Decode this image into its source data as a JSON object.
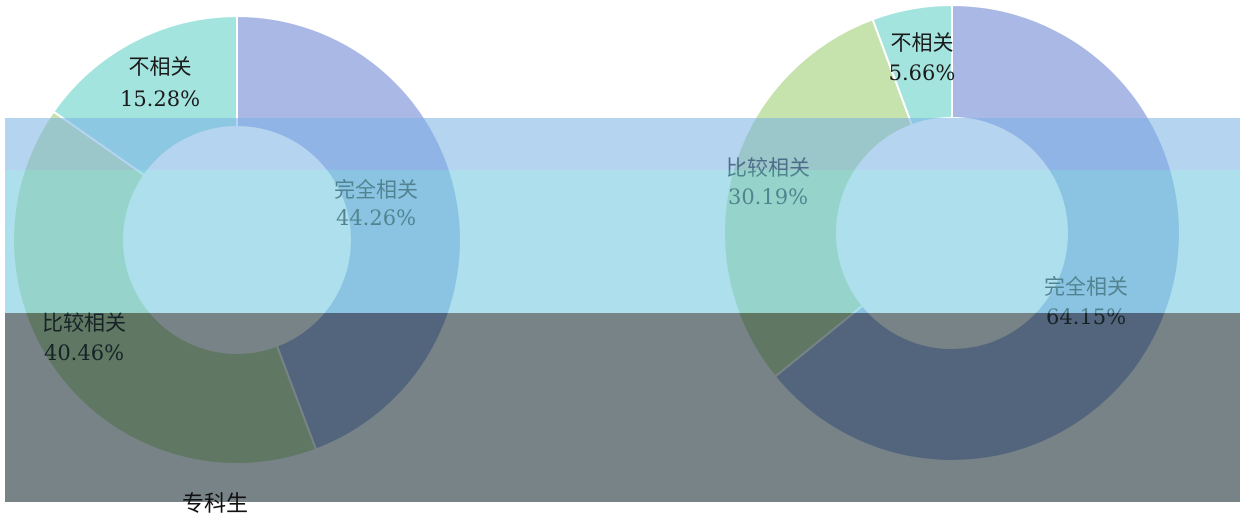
{
  "colors": {
    "slice_1": "#aab8e6",
    "slice_2": "#c6e2ad",
    "slice_3": "#a4e4df",
    "overlay_top": "#9ec8ea",
    "overlay_mid": "#8ed3e6",
    "overlay_bottom": "#6e7d82"
  },
  "chart_data": [
    {
      "type": "pie",
      "title": "",
      "caption": "专科生",
      "slices": [
        {
          "label": "完全相关",
          "value": 44.26,
          "value_text": "44.26%",
          "color": "#aab8e6"
        },
        {
          "label": "比较相关",
          "value": 40.46,
          "value_text": "40.46%",
          "color": "#c6e2ad"
        },
        {
          "label": "不相关",
          "value": 15.28,
          "value_text": "15.28%",
          "color": "#a4e4df"
        }
      ]
    },
    {
      "type": "pie",
      "title": "",
      "caption": "",
      "slices": [
        {
          "label": "完全相关",
          "value": 64.15,
          "value_text": "64.15%",
          "color": "#aab8e6"
        },
        {
          "label": "比较相关",
          "value": 30.19,
          "value_text": "30.19%",
          "color": "#c6e2ad"
        },
        {
          "label": "不相关",
          "value": 5.66,
          "value_text": "5.66%",
          "color": "#a4e4df"
        }
      ]
    }
  ]
}
